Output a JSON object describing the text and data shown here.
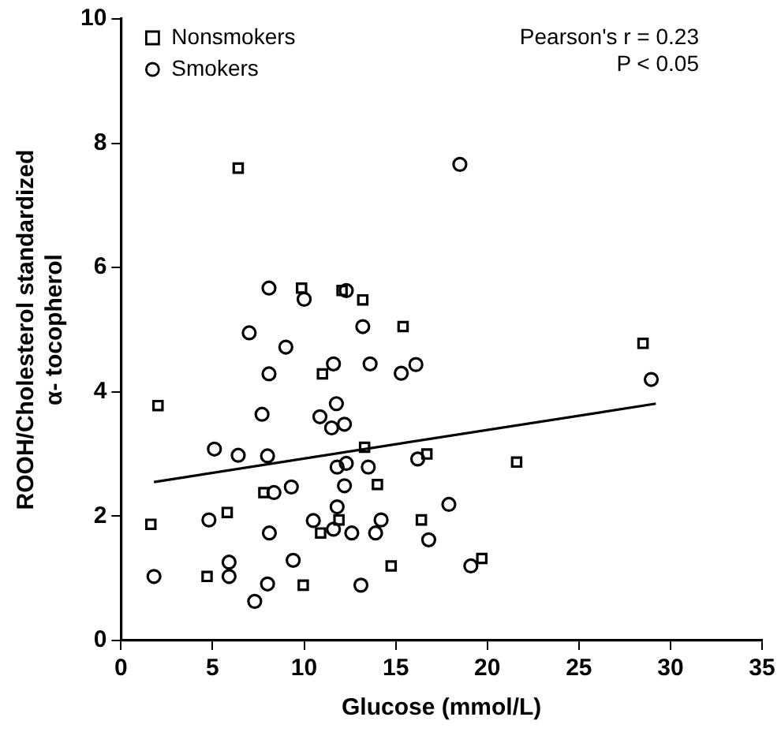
{
  "chart_data": {
    "type": "scatter",
    "xlabel": "Glucose (mmol/L)",
    "ylabel": "ROOH/Cholesterol standardized\nα- tocopherol",
    "xlim": [
      0,
      35
    ],
    "xticks": [
      0,
      5,
      10,
      15,
      20,
      25,
      30,
      35
    ],
    "ylim": [
      0,
      10
    ],
    "yticks": [
      0,
      2,
      4,
      6,
      8,
      10
    ],
    "grid": false,
    "legend": "top left",
    "annotations": [
      "Pearson's r = 0.23",
      "P < 0.05"
    ],
    "series": [
      {
        "name": "Nonsmokers",
        "color": "#000000",
        "marker": "square",
        "x": [
          6.4,
          9.86,
          12.07,
          13.2,
          15.4,
          11.0,
          2.02,
          13.3,
          16.7,
          7.8,
          14.0,
          5.8,
          1.63,
          11.9,
          10.9,
          16.4,
          4.7,
          9.95,
          14.75,
          28.5,
          21.6,
          19.7
        ],
        "values": [
          7.6,
          5.67,
          5.63,
          5.48,
          5.05,
          4.29,
          3.78,
          3.11,
          3.0,
          2.38,
          2.51,
          2.06,
          1.87,
          1.94,
          1.73,
          1.94,
          1.03,
          0.89,
          1.2,
          4.78,
          2.87,
          1.32
        ]
      },
      {
        "name": "Smokers",
        "color": "#000000",
        "marker": "circle",
        "x": [
          8.08,
          10.0,
          12.3,
          13.2,
          7.0,
          9.0,
          8.08,
          11.6,
          13.6,
          15.3,
          16.1,
          7.7,
          10.86,
          11.76,
          11.5,
          12.2,
          5.1,
          6.4,
          8.0,
          11.8,
          12.3,
          13.5,
          16.2,
          8.35,
          9.3,
          12.2,
          11.8,
          4.8,
          8.1,
          10.5,
          11.6,
          12.6,
          13.9,
          14.2,
          16.8,
          5.9,
          5.9,
          1.8,
          9.4,
          8.0,
          7.3,
          13.1,
          18.5,
          28.95,
          17.9,
          19.1
        ],
        "values": [
          5.67,
          5.49,
          5.63,
          5.05,
          4.95,
          4.72,
          4.29,
          4.45,
          4.45,
          4.3,
          4.44,
          3.64,
          3.6,
          3.81,
          3.42,
          3.48,
          3.08,
          2.98,
          2.97,
          2.79,
          2.85,
          2.79,
          2.92,
          2.38,
          2.47,
          2.49,
          2.15,
          1.94,
          1.73,
          1.93,
          1.79,
          1.73,
          1.73,
          1.94,
          1.62,
          1.26,
          1.03,
          1.03,
          1.29,
          0.91,
          0.63,
          0.89,
          7.66,
          4.2,
          2.19,
          1.2
        ]
      },
      {
        "type": "line",
        "color": "#000000",
        "marker": "none",
        "x": [
          1.8,
          29.2
        ],
        "values": [
          2.55,
          3.81
        ]
      }
    ]
  }
}
